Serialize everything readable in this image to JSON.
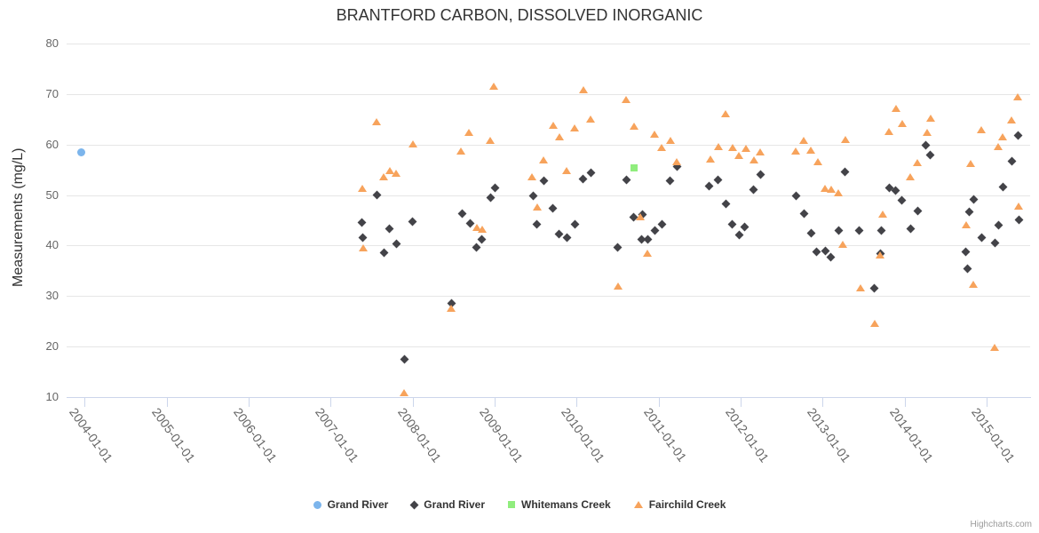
{
  "credits": "Highcharts.com",
  "chart_data": {
    "type": "scatter",
    "title": "BRANTFORD CARBON, DISSOLVED INORGANIC",
    "xlabel": "",
    "ylabel": "Measurements (mg/L)",
    "grid": "horizontal",
    "legend_position": "bottom-center",
    "x_axis": {
      "type": "datetime",
      "range": [
        2003.78,
        2015.53
      ],
      "tick_labels": [
        "2004-01-01",
        "2005-01-01",
        "2006-01-01",
        "2007-01-01",
        "2008-01-01",
        "2009-01-01",
        "2010-01-01",
        "2011-01-01",
        "2012-01-01",
        "2013-01-01",
        "2014-01-01",
        "2015-01-01"
      ]
    },
    "y_axis": {
      "range": [
        10,
        80
      ],
      "ticks": [
        10,
        20,
        30,
        40,
        50,
        60,
        70,
        80
      ]
    },
    "series": [
      {
        "id": "grand-river-blue",
        "name": "Grand River",
        "marker": "circle",
        "color": "#7cb5ec",
        "points": [
          [
            2003.96,
            58.4
          ]
        ]
      },
      {
        "id": "grand-river-dark",
        "name": "Grand River",
        "marker": "diamond",
        "color": "#434348",
        "points": [
          [
            2007.38,
            44.6
          ],
          [
            2007.39,
            41.6
          ],
          [
            2007.57,
            50.0
          ],
          [
            2007.65,
            38.6
          ],
          [
            2007.72,
            43.3
          ],
          [
            2007.8,
            40.4
          ],
          [
            2007.9,
            17.4
          ],
          [
            2008.0,
            44.7
          ],
          [
            2008.47,
            28.6
          ],
          [
            2008.6,
            46.3
          ],
          [
            2008.7,
            44.4
          ],
          [
            2008.78,
            39.7
          ],
          [
            2008.84,
            41.2
          ],
          [
            2008.95,
            49.5
          ],
          [
            2009.0,
            51.4
          ],
          [
            2009.47,
            49.8
          ],
          [
            2009.51,
            44.2
          ],
          [
            2009.6,
            52.9
          ],
          [
            2009.71,
            47.4
          ],
          [
            2009.79,
            42.3
          ],
          [
            2009.88,
            41.6
          ],
          [
            2009.98,
            44.2
          ],
          [
            2010.08,
            53.2
          ],
          [
            2010.18,
            54.4
          ],
          [
            2010.5,
            39.7
          ],
          [
            2010.61,
            53.0
          ],
          [
            2010.69,
            45.6
          ],
          [
            2010.79,
            41.2
          ],
          [
            2010.8,
            46.1
          ],
          [
            2010.87,
            41.2
          ],
          [
            2010.95,
            43.0
          ],
          [
            2011.04,
            44.2
          ],
          [
            2011.14,
            52.9
          ],
          [
            2011.22,
            55.6
          ],
          [
            2011.62,
            51.8
          ],
          [
            2011.72,
            53.0
          ],
          [
            2011.82,
            48.3
          ],
          [
            2011.9,
            44.2
          ],
          [
            2011.98,
            42.1
          ],
          [
            2012.05,
            43.7
          ],
          [
            2012.16,
            51.1
          ],
          [
            2012.24,
            54.0
          ],
          [
            2012.68,
            49.8
          ],
          [
            2012.77,
            46.3
          ],
          [
            2012.86,
            42.5
          ],
          [
            2012.93,
            38.8
          ],
          [
            2013.03,
            39.0
          ],
          [
            2013.1,
            37.7
          ],
          [
            2013.2,
            43.0
          ],
          [
            2013.27,
            54.6
          ],
          [
            2013.45,
            43.0
          ],
          [
            2013.63,
            31.6
          ],
          [
            2013.71,
            38.4
          ],
          [
            2013.72,
            43.0
          ],
          [
            2013.81,
            51.4
          ],
          [
            2013.89,
            50.9
          ],
          [
            2013.97,
            49.0
          ],
          [
            2014.07,
            43.4
          ],
          [
            2014.16,
            46.9
          ],
          [
            2014.26,
            59.9
          ],
          [
            2014.31,
            58.0
          ],
          [
            2014.75,
            38.8
          ],
          [
            2014.77,
            35.5
          ],
          [
            2014.79,
            46.7
          ],
          [
            2014.84,
            49.1
          ],
          [
            2014.94,
            41.6
          ],
          [
            2015.1,
            40.6
          ],
          [
            2015.15,
            44.1
          ],
          [
            2015.2,
            51.6
          ],
          [
            2015.31,
            56.7
          ],
          [
            2015.38,
            61.8
          ],
          [
            2015.4,
            45.1
          ]
        ]
      },
      {
        "id": "whitemans-creek",
        "name": "Whitemans Creek",
        "marker": "square",
        "color": "#90ed7d",
        "points": [
          [
            2010.7,
            55.4
          ]
        ]
      },
      {
        "id": "fairchild-creek",
        "name": "Fairchild Creek",
        "marker": "triangle",
        "color": "#f7a35c",
        "points": [
          [
            2007.39,
            51.2
          ],
          [
            2007.4,
            39.3
          ],
          [
            2007.56,
            64.4
          ],
          [
            2007.65,
            53.5
          ],
          [
            2007.72,
            54.6
          ],
          [
            2007.8,
            54.2
          ],
          [
            2007.89,
            10.7
          ],
          [
            2008.0,
            59.9
          ],
          [
            2008.47,
            27.4
          ],
          [
            2008.59,
            58.6
          ],
          [
            2008.69,
            62.3
          ],
          [
            2008.78,
            43.5
          ],
          [
            2008.85,
            43.0
          ],
          [
            2008.95,
            60.7
          ],
          [
            2008.99,
            71.4
          ],
          [
            2009.45,
            53.4
          ],
          [
            2009.52,
            47.5
          ],
          [
            2009.6,
            56.7
          ],
          [
            2009.71,
            63.7
          ],
          [
            2009.79,
            61.3
          ],
          [
            2009.88,
            54.6
          ],
          [
            2009.97,
            63.1
          ],
          [
            2010.08,
            70.7
          ],
          [
            2010.17,
            64.9
          ],
          [
            2010.5,
            31.8
          ],
          [
            2010.6,
            68.8
          ],
          [
            2010.7,
            63.5
          ],
          [
            2010.78,
            45.6
          ],
          [
            2010.86,
            38.3
          ],
          [
            2010.95,
            61.9
          ],
          [
            2011.04,
            59.2
          ],
          [
            2011.14,
            60.6
          ],
          [
            2011.22,
            56.5
          ],
          [
            2011.63,
            57.0
          ],
          [
            2011.73,
            59.4
          ],
          [
            2011.82,
            65.9
          ],
          [
            2011.9,
            59.2
          ],
          [
            2011.98,
            57.7
          ],
          [
            2012.06,
            59.0
          ],
          [
            2012.16,
            56.7
          ],
          [
            2012.24,
            58.3
          ],
          [
            2012.67,
            58.6
          ],
          [
            2012.77,
            60.7
          ],
          [
            2012.85,
            58.8
          ],
          [
            2012.94,
            56.5
          ],
          [
            2013.03,
            51.1
          ],
          [
            2013.1,
            50.9
          ],
          [
            2013.19,
            50.2
          ],
          [
            2013.24,
            40.0
          ],
          [
            2013.28,
            60.9
          ],
          [
            2013.46,
            31.4
          ],
          [
            2013.63,
            24.4
          ],
          [
            2013.7,
            37.9
          ],
          [
            2013.73,
            46.1
          ],
          [
            2013.81,
            62.5
          ],
          [
            2013.9,
            66.9
          ],
          [
            2013.97,
            64.0
          ],
          [
            2014.07,
            53.5
          ],
          [
            2014.16,
            56.3
          ],
          [
            2014.27,
            62.3
          ],
          [
            2014.32,
            65.1
          ],
          [
            2014.75,
            43.9
          ],
          [
            2014.8,
            56.1
          ],
          [
            2014.84,
            32.1
          ],
          [
            2014.93,
            62.8
          ],
          [
            2015.1,
            19.6
          ],
          [
            2015.14,
            59.5
          ],
          [
            2015.19,
            61.4
          ],
          [
            2015.3,
            64.7
          ],
          [
            2015.38,
            69.3
          ],
          [
            2015.39,
            47.6
          ]
        ]
      }
    ]
  }
}
